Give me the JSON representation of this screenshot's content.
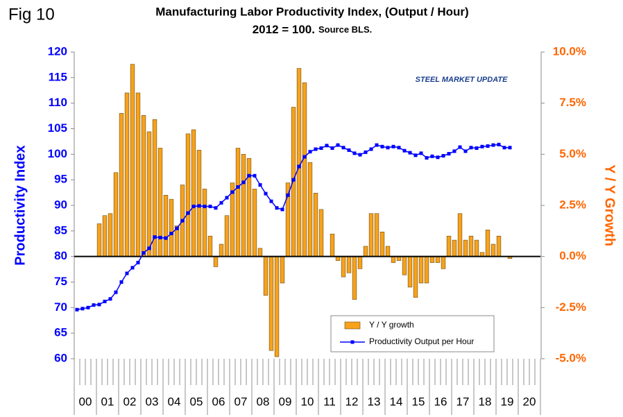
{
  "chart_data": {
    "type": "bar",
    "fig_label": "Fig 10",
    "title": "Manufacturing Labor Productivity Index, (Output / Hour)",
    "subtitle": "2012 = 100.",
    "source": "Source BLS.",
    "logo_text": "STEEL MARKET UPDATE",
    "y_label": "Productivity Index",
    "y2_label": "Y / Y Growth",
    "categories": [
      "00",
      null,
      null,
      null,
      "01",
      null,
      null,
      null,
      "02",
      null,
      null,
      null,
      "03",
      null,
      null,
      null,
      "04",
      null,
      null,
      null,
      "05",
      null,
      null,
      null,
      "06",
      null,
      null,
      null,
      "07",
      null,
      null,
      null,
      "08",
      null,
      null,
      null,
      "09",
      null,
      null,
      null,
      "10",
      null,
      null,
      null,
      "11",
      null,
      null,
      null,
      "12",
      null,
      null,
      null,
      "13",
      null,
      null,
      null,
      "14",
      null,
      null,
      null,
      "15",
      null,
      null,
      null,
      "16",
      null,
      null,
      null,
      "17",
      null,
      null,
      null,
      "18",
      null,
      null,
      null,
      "19",
      null,
      null,
      null,
      "20",
      null,
      null,
      null
    ],
    "series": [
      {
        "name": "Y / Y growth",
        "type": "bar",
        "axis": "y2",
        "color": "#f7a21b",
        "values": [
          null,
          null,
          null,
          null,
          1.6,
          2.0,
          2.1,
          4.1,
          7.0,
          8.0,
          9.4,
          8.0,
          6.9,
          6.1,
          6.7,
          5.3,
          3.0,
          2.8,
          1.5,
          3.5,
          6.0,
          6.2,
          5.2,
          3.3,
          1.0,
          -0.5,
          0.6,
          2.0,
          3.6,
          5.3,
          5.0,
          4.8,
          3.3,
          0.4,
          -1.9,
          -4.6,
          -4.9,
          -1.3,
          3.6,
          7.3,
          9.2,
          8.5,
          4.6,
          3.1,
          2.3,
          0,
          1.1,
          -0.2,
          -1.0,
          -0.8,
          -2.1,
          -0.6,
          0.5,
          2.1,
          2.1,
          1.2,
          0.5,
          -0.3,
          -0.2,
          -0.9,
          -1.5,
          -2.0,
          -1.3,
          -1.3,
          -0.3,
          -0.3,
          -0.6,
          1.0,
          0.8,
          2.1,
          0.8,
          1.0,
          0.8,
          0.2,
          1.3,
          0.6,
          1.0,
          0,
          -0.1,
          null,
          null,
          null,
          null,
          null
        ]
      },
      {
        "name": "Productivity Output per Hour",
        "type": "line",
        "color": "#0000ff",
        "values": [
          69.6,
          69.8,
          70.0,
          70.5,
          70.6,
          71.2,
          71.7,
          73.0,
          75.0,
          76.7,
          77.8,
          78.8,
          80.7,
          81.6,
          83.8,
          83.7,
          83.6,
          84.5,
          85.5,
          87.0,
          88.5,
          89.8,
          89.9,
          89.8,
          89.8,
          89.5,
          90.5,
          91.5,
          92.6,
          93.6,
          94.5,
          95.8,
          95.8,
          94.0,
          92.3,
          90.8,
          89.5,
          89.2,
          92.0,
          95.0,
          97.6,
          99.5,
          100.5,
          101.0,
          101.2,
          101.7,
          101.2,
          101.8,
          101.3,
          100.8,
          100.2,
          99.9,
          100.4,
          101.0,
          101.8,
          101.5,
          101.3,
          101.5,
          101.3,
          100.7,
          100.3,
          99.8,
          100.2,
          99.3,
          99.6,
          99.4,
          99.7,
          100.1,
          100.6,
          101.4,
          100.6,
          101.3,
          101.2,
          101.5,
          101.6,
          101.8,
          101.9,
          101.3,
          101.3,
          null,
          null,
          null,
          null,
          null
        ]
      }
    ],
    "ylim": [
      60,
      120
    ],
    "yticks": [
      60,
      65,
      70,
      75,
      80,
      85,
      90,
      95,
      100,
      105,
      110,
      115,
      120
    ],
    "y2lim": [
      -5,
      10
    ],
    "y2ticks": [
      {
        "value": -5,
        "label": "-5.0%"
      },
      {
        "value": -2.5,
        "label": "-2.5%"
      },
      {
        "value": 0,
        "label": "0.0%"
      },
      {
        "value": 2.5,
        "label": "2.5%"
      },
      {
        "value": 5,
        "label": "5.0%"
      },
      {
        "value": 7.5,
        "label": "7.5%"
      },
      {
        "value": 10,
        "label": "10.0%"
      }
    ],
    "grid": false
  }
}
